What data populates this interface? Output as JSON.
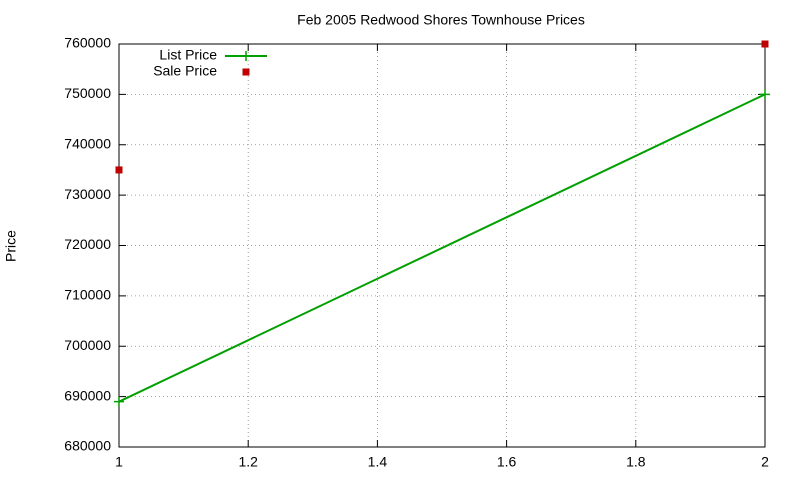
{
  "chart_data": {
    "type": "line",
    "title": "Feb 2005 Redwood Shores Townhouse Prices",
    "y_label": "Price",
    "x": [
      1,
      2
    ],
    "series": [
      {
        "name": "List Price",
        "color": "#00a000",
        "mode": "linespoints",
        "values": [
          689000,
          750000
        ]
      },
      {
        "name": "Sale Price",
        "color": "#c00000",
        "mode": "points",
        "values": [
          735000,
          760000
        ]
      }
    ],
    "xlim": [
      1,
      2
    ],
    "xticks": [
      1,
      1.2,
      1.4,
      1.6,
      1.8,
      2
    ],
    "ylim": [
      680000,
      760000
    ],
    "yticks": [
      680000,
      690000,
      700000,
      710000,
      720000,
      730000,
      740000,
      750000,
      760000
    ],
    "grid": true,
    "legend": "top-left"
  }
}
